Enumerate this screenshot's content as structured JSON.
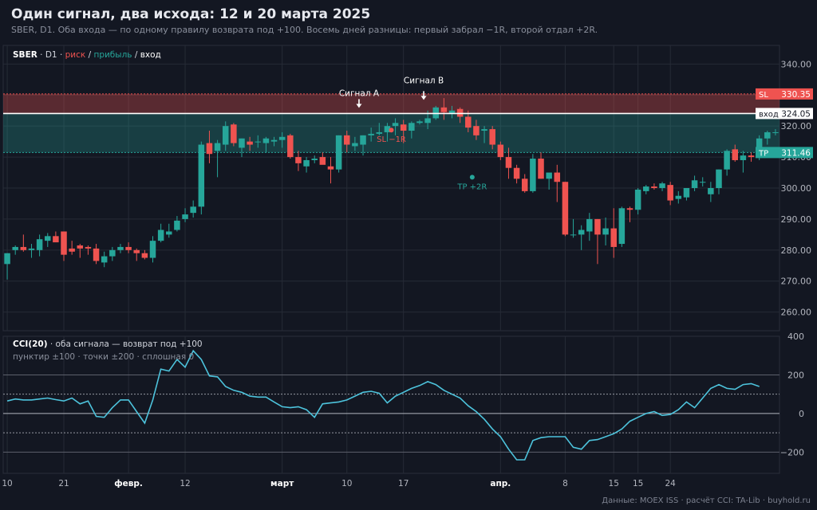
{
  "header": {
    "title": "Один сигнал, два исхода: 12 и 20 марта 2025",
    "subtitle": "SBER, D1. Оба входа — по одному правилу возврата под +100. Восемь дней разницы: первый забрал −1R, второй отдал +2R."
  },
  "footer": "Данные: MOEX ISS · расчёт CCI: TA-Lib · buyhold.ru",
  "colors": {
    "bg": "#131722",
    "up": "#26a69a",
    "down": "#ef5350",
    "cci": "#4dc3dc",
    "grid": "#262b36",
    "text": "#d1d4dc",
    "muted": "#8a8f9c"
  },
  "chart_data": [
    {
      "type": "candlestick",
      "legend": {
        "ticker": "SBER",
        "tf": "D1",
        "risk": "риск",
        "profit": "прибыль",
        "entry": "вход"
      },
      "ylim": [
        254,
        346
      ],
      "yticks": [
        260,
        270,
        280,
        290,
        300,
        310,
        320,
        330,
        340
      ],
      "ytick_labels": [
        "260.00",
        "270.00",
        "280.00",
        "290.00",
        "300.00",
        "310.00",
        "320.00",
        "330.00",
        "340.00"
      ],
      "xtick_labels": [
        {
          "i": 0,
          "label": "10",
          "bold": false
        },
        {
          "i": 7,
          "label": "21",
          "bold": false
        },
        {
          "i": 15,
          "label": "февр.",
          "bold": true
        },
        {
          "i": 22,
          "label": "12",
          "bold": false
        },
        {
          "i": 34,
          "label": "март",
          "bold": true
        },
        {
          "i": 42,
          "label": "10",
          "bold": false
        },
        {
          "i": 49,
          "label": "17",
          "bold": false
        },
        {
          "i": 61,
          "label": "апр.",
          "bold": true
        },
        {
          "i": 69,
          "label": "8",
          "bold": false
        },
        {
          "i": 75,
          "label": "15",
          "bold": false
        },
        {
          "i": 78,
          "label": "15",
          "bold": false
        },
        {
          "i": 82,
          "label": "24",
          "bold": false
        }
      ],
      "levels": {
        "sl": {
          "tag": "SL",
          "value": 330.35,
          "label": "330.35"
        },
        "entry": {
          "tag": "вход",
          "value": 324.05,
          "label": "324.05"
        },
        "tp": {
          "tag": "TP",
          "value": 311.46,
          "label": "311.46"
        }
      },
      "annotations": [
        {
          "text": "Сигнал A",
          "i": 43.5
        },
        {
          "text": "Сигнал B",
          "i": 51.5
        }
      ],
      "outcomes": [
        {
          "text": "SL −1R",
          "i": 47.5,
          "y": 318.7
        },
        {
          "text": "TP +2R",
          "i": 57.5,
          "y": 303.5
        }
      ],
      "candles": [
        [
          275.5,
          279,
          270.5,
          279
        ],
        [
          280,
          281.5,
          278.5,
          281
        ],
        [
          281,
          285,
          279.5,
          280
        ],
        [
          280,
          282,
          277.5,
          280.5
        ],
        [
          280,
          285,
          278,
          283.5
        ],
        [
          283,
          285.5,
          281,
          284.5
        ],
        [
          284.5,
          286,
          283,
          282.5
        ],
        [
          286,
          286,
          276.5,
          278.5
        ],
        [
          280.5,
          283,
          278.5,
          279.5
        ],
        [
          281.5,
          282,
          277.5,
          280.5
        ],
        [
          281,
          281.5,
          278.5,
          280.5
        ],
        [
          280.5,
          282,
          275.5,
          276.5
        ],
        [
          276,
          279.5,
          274.5,
          278
        ],
        [
          278,
          281,
          276.5,
          280
        ],
        [
          280,
          282,
          279,
          281
        ],
        [
          281,
          282.5,
          279,
          280
        ],
        [
          280,
          280.5,
          276.5,
          279
        ],
        [
          279,
          280,
          277,
          277.5
        ],
        [
          277.5,
          284.5,
          276,
          283
        ],
        [
          283,
          288.5,
          282.5,
          286.5
        ],
        [
          285,
          288.5,
          284,
          286
        ],
        [
          286.5,
          291,
          286,
          289.5
        ],
        [
          290,
          293.5,
          289,
          291.5
        ],
        [
          292,
          296,
          290.5,
          294
        ],
        [
          294,
          315,
          291.5,
          314
        ],
        [
          314.5,
          318.5,
          308,
          311
        ],
        [
          312,
          315.5,
          303.5,
          314.5
        ],
        [
          314,
          321.5,
          312,
          320
        ],
        [
          320.5,
          321,
          313.5,
          314.5
        ],
        [
          313,
          316,
          310,
          316
        ],
        [
          315,
          316.5,
          312,
          314
        ],
        [
          315,
          317,
          313,
          315
        ],
        [
          314.5,
          316.5,
          311.5,
          316
        ],
        [
          315,
          316.5,
          313.5,
          315.5
        ],
        [
          315.5,
          318,
          313,
          316.5
        ],
        [
          317,
          317.5,
          309.5,
          310
        ],
        [
          310,
          312,
          305.5,
          308
        ],
        [
          307,
          310,
          305,
          309
        ],
        [
          309,
          310.5,
          308,
          309.5
        ],
        [
          310,
          311.5,
          308,
          307.5
        ],
        [
          307,
          310,
          301.5,
          306
        ],
        [
          306,
          317,
          305,
          317
        ],
        [
          317,
          318.5,
          311.5,
          314
        ],
        [
          313.5,
          316.5,
          312,
          314.5
        ],
        [
          314,
          317,
          310.5,
          317
        ],
        [
          317,
          319.5,
          315,
          317.5
        ],
        [
          317.5,
          321,
          317,
          318
        ],
        [
          318,
          321,
          315,
          320
        ],
        [
          320,
          322.5,
          317,
          321
        ],
        [
          320.5,
          322,
          314.5,
          318.5
        ],
        [
          318.5,
          321.5,
          316,
          321
        ],
        [
          321,
          322,
          320.5,
          321.5
        ],
        [
          321,
          325,
          319,
          322.5
        ],
        [
          322.5,
          326.5,
          322,
          326
        ],
        [
          326,
          329,
          322,
          324.5
        ],
        [
          324,
          326.5,
          322.5,
          325
        ],
        [
          325.5,
          326,
          321,
          323
        ],
        [
          323,
          325,
          318,
          319.5
        ],
        [
          320,
          322,
          315.5,
          317
        ],
        [
          318.5,
          320,
          314.5,
          319
        ],
        [
          319,
          320,
          312.5,
          314
        ],
        [
          314,
          315,
          309,
          310
        ],
        [
          310,
          313,
          303,
          306.5
        ],
        [
          306.5,
          307.5,
          301.5,
          303
        ],
        [
          303,
          304.5,
          298.5,
          299
        ],
        [
          299,
          311,
          298.5,
          309.5
        ],
        [
          309.5,
          311.5,
          303,
          303
        ],
        [
          303,
          304.5,
          299.5,
          305
        ],
        [
          305,
          307.5,
          295.5,
          302
        ],
        [
          302,
          302,
          284.5,
          285
        ],
        [
          285,
          290,
          284,
          285
        ],
        [
          285,
          288,
          280,
          286.5
        ],
        [
          286,
          292,
          283,
          290
        ],
        [
          290,
          290,
          275.5,
          285
        ],
        [
          285,
          290.5,
          281.5,
          287
        ],
        [
          287,
          293.5,
          277.5,
          281
        ],
        [
          282,
          294,
          281,
          293.5
        ],
        [
          293.5,
          294,
          289,
          293
        ],
        [
          293,
          300,
          291.5,
          299.5
        ],
        [
          299,
          301,
          298,
          300.5
        ],
        [
          300.5,
          301.5,
          299.5,
          300
        ],
        [
          300,
          302,
          299,
          301.5
        ],
        [
          301,
          302,
          294.5,
          296
        ],
        [
          296.5,
          299,
          295,
          297.5
        ],
        [
          297,
          300,
          296,
          300
        ],
        [
          300,
          304,
          299,
          302.5
        ],
        [
          302,
          303.5,
          300.5,
          302
        ],
        [
          298,
          302,
          295.5,
          300
        ],
        [
          300,
          306,
          298,
          306
        ],
        [
          306,
          312.5,
          304,
          312
        ],
        [
          312.5,
          314,
          308.5,
          309
        ],
        [
          309,
          312,
          305,
          310.5
        ],
        [
          310.5,
          311.5,
          308.5,
          310
        ],
        [
          310,
          317,
          309,
          316
        ],
        [
          316,
          318.5,
          314,
          318
        ],
        [
          318,
          319,
          317,
          318
        ]
      ]
    },
    {
      "type": "line",
      "legend": {
        "name": "CCI(20)",
        "desc": "· оба сигнала — возврат под +100",
        "note": "пунктир ±100 · точки ±200 · сплошная 0"
      },
      "ylim": [
        -310,
        400
      ],
      "yticks": [
        -200,
        0,
        200,
        400
      ],
      "ytick_labels": [
        "−200",
        "0",
        "200",
        "400"
      ],
      "values": [
        65,
        75,
        70,
        70,
        75,
        80,
        72,
        65,
        80,
        50,
        65,
        -15,
        -20,
        30,
        70,
        70,
        10,
        -50,
        70,
        230,
        220,
        280,
        240,
        325,
        280,
        195,
        190,
        140,
        120,
        110,
        90,
        85,
        85,
        60,
        35,
        30,
        35,
        20,
        -20,
        50,
        55,
        60,
        70,
        90,
        110,
        115,
        105,
        55,
        90,
        110,
        130,
        145,
        165,
        150,
        120,
        100,
        80,
        40,
        10,
        -30,
        -80,
        -120,
        -185,
        -240,
        -240,
        -140,
        -125,
        -120,
        -120,
        -120,
        -175,
        -185,
        -140,
        -135,
        -120,
        -105,
        -80,
        -40,
        -20,
        0,
        10,
        -10,
        -5,
        20,
        60,
        30,
        80,
        130,
        150,
        130,
        125,
        150,
        155,
        140
      ]
    }
  ]
}
